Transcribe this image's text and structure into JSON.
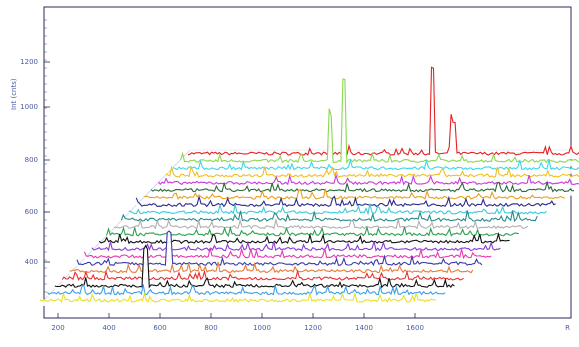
{
  "chart_data": {
    "type": "line",
    "style": "3d-waterfall",
    "title": "",
    "xlabel": "",
    "ylabel": "",
    "ylabel_visible_text": "Int (cnts)",
    "x_tick_labels": [
      "200",
      "400",
      "600",
      "800",
      "1000",
      "1200",
      "1400",
      "1600"
    ],
    "x_axis_right_label": "R",
    "y_tick_labels": [
      "400",
      "600",
      "800",
      "1000",
      "1200"
    ],
    "grid": false,
    "series_colors": [
      "#e8e02a",
      "#3aa0e8",
      "#111111",
      "#e83030",
      "#e87a3a",
      "#3a3aa8",
      "#e83ab0",
      "#8a3ad8",
      "#111111",
      "#2aa050",
      "#b0b0b0",
      "#2a8a8a",
      "#3acad8",
      "#2a2a8a",
      "#e8a020",
      "#2a6a3a",
      "#c83ad8",
      "#f0c020",
      "#3ad8e8",
      "#8ad850",
      "#e82020"
    ],
    "peaks": [
      {
        "series": 20,
        "x": 1050,
        "height": 0.95
      },
      {
        "series": 20,
        "x": 1120,
        "height": 0.35
      },
      {
        "series": 19,
        "x": 770,
        "height": 0.9
      },
      {
        "series": 19,
        "x": 720,
        "height": 0.5
      },
      {
        "series": 5,
        "x": 540,
        "height": 0.35
      },
      {
        "series": 2,
        "x": 540,
        "height": 0.4
      }
    ]
  }
}
